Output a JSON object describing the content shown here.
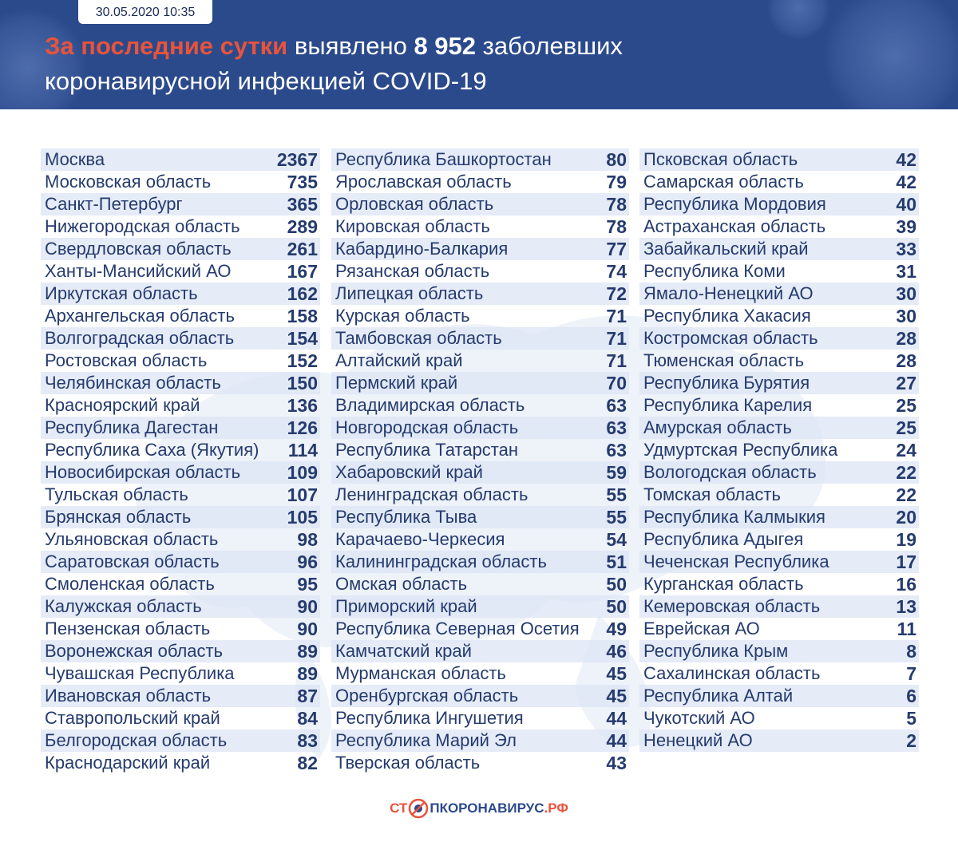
{
  "header": {
    "date": "30.05.2020 10:35",
    "headline_accent": "За последние сутки",
    "headline_mid": "выявлено",
    "headline_number": "8 952",
    "headline_tail": "заболевших",
    "headline_line2": "коронавирусной инфекцией COVID-19"
  },
  "columns": [
    [
      {
        "name": "Москва",
        "value": "2367"
      },
      {
        "name": "Московская область",
        "value": "735"
      },
      {
        "name": "Санкт-Петербург",
        "value": "365"
      },
      {
        "name": "Нижегородская область",
        "value": "289"
      },
      {
        "name": "Свердловская область",
        "value": "261"
      },
      {
        "name": "Ханты-Мансийский АО",
        "value": "167"
      },
      {
        "name": "Иркутская область",
        "value": "162"
      },
      {
        "name": "Архангельская область",
        "value": "158"
      },
      {
        "name": "Волгоградская область",
        "value": "154"
      },
      {
        "name": "Ростовская область",
        "value": "152"
      },
      {
        "name": "Челябинская область",
        "value": "150"
      },
      {
        "name": "Красноярский край",
        "value": "136"
      },
      {
        "name": "Республика Дагестан",
        "value": "126"
      },
      {
        "name": "Республика Саха (Якутия)",
        "value": "114"
      },
      {
        "name": "Новосибирская область",
        "value": "109"
      },
      {
        "name": "Тульская область",
        "value": "107"
      },
      {
        "name": "Брянская область",
        "value": "105"
      },
      {
        "name": "Ульяновская область",
        "value": "98"
      },
      {
        "name": "Саратовская область",
        "value": "96"
      },
      {
        "name": "Смоленская область",
        "value": "95"
      },
      {
        "name": "Калужская область",
        "value": "90"
      },
      {
        "name": "Пензенская область",
        "value": "90"
      },
      {
        "name": "Воронежская область",
        "value": "89"
      },
      {
        "name": "Чувашская Республика",
        "value": "89"
      },
      {
        "name": "Ивановская область",
        "value": "87"
      },
      {
        "name": "Ставропольский край",
        "value": "84"
      },
      {
        "name": "Белгородская область",
        "value": "83"
      },
      {
        "name": "Краснодарский край",
        "value": "82"
      }
    ],
    [
      {
        "name": "Республика Башкортостан",
        "value": "80"
      },
      {
        "name": "Ярославская область",
        "value": "79"
      },
      {
        "name": "Орловская область",
        "value": "78"
      },
      {
        "name": "Кировская область",
        "value": "78"
      },
      {
        "name": "Кабардино-Балкария",
        "value": "77"
      },
      {
        "name": "Рязанская область",
        "value": "74"
      },
      {
        "name": "Липецкая область",
        "value": "72"
      },
      {
        "name": "Курская область",
        "value": "71"
      },
      {
        "name": "Тамбовская область",
        "value": "71"
      },
      {
        "name": "Алтайский край",
        "value": "71"
      },
      {
        "name": "Пермский край",
        "value": "70"
      },
      {
        "name": "Владимирская область",
        "value": "63"
      },
      {
        "name": "Новгородская область",
        "value": "63"
      },
      {
        "name": "Республика Татарстан",
        "value": "63"
      },
      {
        "name": "Хабаровский край",
        "value": "59"
      },
      {
        "name": "Ленинградская область",
        "value": "55"
      },
      {
        "name": "Республика Тыва",
        "value": "55"
      },
      {
        "name": "Карачаево-Черкесия",
        "value": "54"
      },
      {
        "name": "Калининградская область",
        "value": "51"
      },
      {
        "name": "Омская область",
        "value": "50"
      },
      {
        "name": "Приморский край",
        "value": "50"
      },
      {
        "name": "Республика Северная Осетия",
        "value": "49"
      },
      {
        "name": "Камчатский край",
        "value": "46"
      },
      {
        "name": "Мурманская область",
        "value": "45"
      },
      {
        "name": "Оренбургская область",
        "value": "45"
      },
      {
        "name": "Республика Ингушетия",
        "value": "44"
      },
      {
        "name": "Республика Марий Эл",
        "value": "44"
      },
      {
        "name": "Тверская область",
        "value": "43"
      }
    ],
    [
      {
        "name": "Псковская область",
        "value": "42"
      },
      {
        "name": "Самарская область",
        "value": "42"
      },
      {
        "name": "Республика Мордовия",
        "value": "40"
      },
      {
        "name": "Астраханская область",
        "value": "39"
      },
      {
        "name": "Забайкальский край",
        "value": "33"
      },
      {
        "name": "Республика Коми",
        "value": "31"
      },
      {
        "name": "Ямало-Ненецкий АО",
        "value": "30"
      },
      {
        "name": "Республика Хакасия",
        "value": "30"
      },
      {
        "name": "Костромская область",
        "value": "28"
      },
      {
        "name": "Тюменская область",
        "value": "28"
      },
      {
        "name": "Республика Бурятия",
        "value": "27"
      },
      {
        "name": "Республика Карелия",
        "value": "25"
      },
      {
        "name": "Амурская область",
        "value": "25"
      },
      {
        "name": "Удмуртская Республика",
        "value": "24"
      },
      {
        "name": "Вологодская область",
        "value": "22"
      },
      {
        "name": "Томская область",
        "value": "22"
      },
      {
        "name": "Республика Калмыкия",
        "value": "20"
      },
      {
        "name": "Республика Адыгея",
        "value": "19"
      },
      {
        "name": "Чеченская Республика",
        "value": "17"
      },
      {
        "name": "Курганская область",
        "value": "16"
      },
      {
        "name": "Кемеровская область",
        "value": "13"
      },
      {
        "name": "Еврейская АО",
        "value": "11"
      },
      {
        "name": "Республика Крым",
        "value": "8"
      },
      {
        "name": "Сахалинская область",
        "value": "7"
      },
      {
        "name": "Республика Алтай",
        "value": "6"
      },
      {
        "name": "Чукотский АО",
        "value": "5"
      },
      {
        "name": "Ненецкий АО",
        "value": "2"
      }
    ]
  ],
  "footer": {
    "logo_part1": "СТ",
    "logo_part2": "ПКОРОНАВИРУС",
    "logo_part3": ".РФ"
  },
  "colors": {
    "header_bg": "#2b4a8c",
    "accent": "#e8533b",
    "text": "#253b6e",
    "row_stripe": "#dce4f4"
  },
  "icons": [
    "virus-decoration-icon",
    "stop-virus-icon"
  ]
}
